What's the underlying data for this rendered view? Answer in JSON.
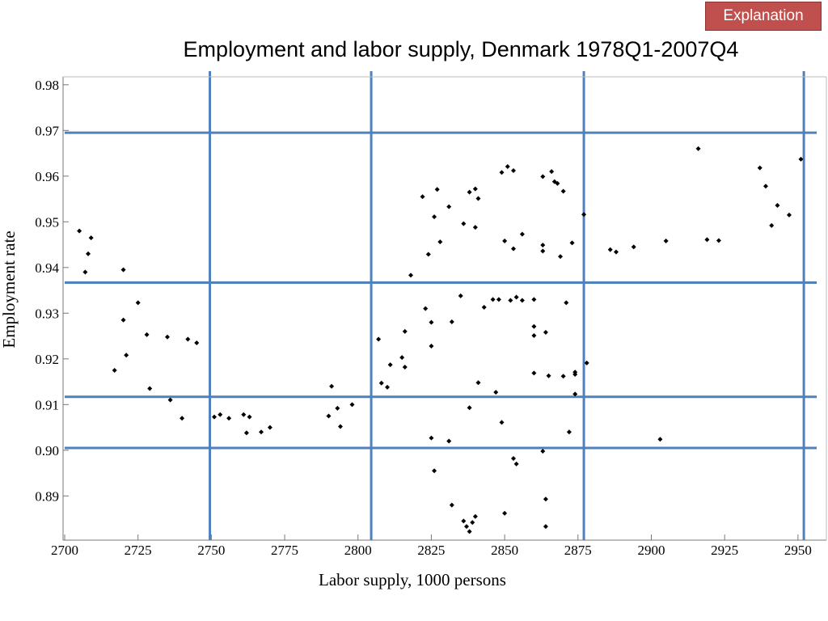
{
  "button": {
    "label": "Explanation",
    "color": "#c0504d"
  },
  "chart_data": {
    "type": "scatter",
    "title": "Employment and labor supply, Denmark 1978Q1-2007Q4",
    "xlabel": "Labor supply, 1000 persons",
    "ylabel": "Employment rate",
    "xlim": [
      2700,
      2955
    ],
    "ylim": [
      0.8805,
      0.9805
    ],
    "xticks": [
      "2700",
      "2725",
      "2750",
      "2775",
      "2800",
      "2825",
      "2850",
      "2875",
      "2900",
      "2925",
      "2950"
    ],
    "yticks": [
      "0.89",
      "0.90",
      "0.91",
      "0.92",
      "0.93",
      "0.94",
      "0.95",
      "0.96",
      "0.97",
      "0.98"
    ],
    "grid": false,
    "overlay_lines": {
      "color": "#4f81bd",
      "vertical_x": [
        2749.5,
        2804.5,
        2877,
        2952
      ],
      "horizontal_y": [
        0.9005,
        0.9117,
        0.9367,
        0.9695
      ]
    },
    "points": [
      [
        2705,
        0.948
      ],
      [
        2707,
        0.939
      ],
      [
        2708,
        0.943
      ],
      [
        2709,
        0.9465
      ],
      [
        2717,
        0.9175
      ],
      [
        2720,
        0.9285
      ],
      [
        2720,
        0.9395
      ],
      [
        2721,
        0.9208
      ],
      [
        2725,
        0.9323
      ],
      [
        2728,
        0.9253
      ],
      [
        2729,
        0.9135
      ],
      [
        2735,
        0.9248
      ],
      [
        2736,
        0.911
      ],
      [
        2740,
        0.907
      ],
      [
        2742,
        0.9243
      ],
      [
        2745,
        0.9235
      ],
      [
        2751,
        0.9073
      ],
      [
        2753,
        0.9078
      ],
      [
        2756,
        0.907
      ],
      [
        2761,
        0.9078
      ],
      [
        2762,
        0.9038
      ],
      [
        2763,
        0.9073
      ],
      [
        2767,
        0.904
      ],
      [
        2770,
        0.905
      ],
      [
        2790,
        0.9075
      ],
      [
        2791,
        0.914
      ],
      [
        2793,
        0.9092
      ],
      [
        2794,
        0.9052
      ],
      [
        2798,
        0.91
      ],
      [
        2807,
        0.9243
      ],
      [
        2808,
        0.9147
      ],
      [
        2810,
        0.9138
      ],
      [
        2811,
        0.9187
      ],
      [
        2815,
        0.9203
      ],
      [
        2816,
        0.9182
      ],
      [
        2816,
        0.926
      ],
      [
        2818,
        0.9383
      ],
      [
        2822,
        0.9555
      ],
      [
        2823,
        0.931
      ],
      [
        2824,
        0.9429
      ],
      [
        2825,
        0.9228
      ],
      [
        2825,
        0.928
      ],
      [
        2825,
        0.9027
      ],
      [
        2826,
        0.9511
      ],
      [
        2826,
        0.8955
      ],
      [
        2827,
        0.9571
      ],
      [
        2828,
        0.9456
      ],
      [
        2831,
        0.9533
      ],
      [
        2831,
        0.902
      ],
      [
        2832,
        0.9281
      ],
      [
        2832,
        0.888
      ],
      [
        2835,
        0.9338
      ],
      [
        2836,
        0.8845
      ],
      [
        2836,
        0.9496
      ],
      [
        2837,
        0.8833
      ],
      [
        2838,
        0.9093
      ],
      [
        2838,
        0.9565
      ],
      [
        2838,
        0.8822
      ],
      [
        2839,
        0.8842
      ],
      [
        2840,
        0.9488
      ],
      [
        2840,
        0.9572
      ],
      [
        2840,
        0.8855
      ],
      [
        2841,
        0.9148
      ],
      [
        2841,
        0.9551
      ],
      [
        2843,
        0.9313
      ],
      [
        2846,
        0.933
      ],
      [
        2847,
        0.9127
      ],
      [
        2848,
        0.933
      ],
      [
        2849,
        0.9608
      ],
      [
        2849,
        0.9061
      ],
      [
        2850,
        0.8862
      ],
      [
        2850,
        0.9458
      ],
      [
        2851,
        0.9621
      ],
      [
        2852,
        0.9328
      ],
      [
        2853,
        0.9441
      ],
      [
        2853,
        0.8982
      ],
      [
        2853,
        0.9612
      ],
      [
        2854,
        0.9335
      ],
      [
        2854,
        0.897
      ],
      [
        2856,
        0.9473
      ],
      [
        2856,
        0.9328
      ],
      [
        2860,
        0.9271
      ],
      [
        2860,
        0.933
      ],
      [
        2860,
        0.9169
      ],
      [
        2860,
        0.9251
      ],
      [
        2863,
        0.9436
      ],
      [
        2863,
        0.9449
      ],
      [
        2863,
        0.9599
      ],
      [
        2863,
        0.8998
      ],
      [
        2864,
        0.9258
      ],
      [
        2864,
        0.8833
      ],
      [
        2864,
        0.8893
      ],
      [
        2865,
        0.9163
      ],
      [
        2866,
        0.961
      ],
      [
        2867,
        0.9588
      ],
      [
        2868,
        0.9584
      ],
      [
        2869,
        0.9424
      ],
      [
        2870,
        0.9567
      ],
      [
        2870,
        0.9162
      ],
      [
        2871,
        0.9323
      ],
      [
        2872,
        0.904
      ],
      [
        2873,
        0.9454
      ],
      [
        2874,
        0.9123
      ],
      [
        2874,
        0.9166
      ],
      [
        2874,
        0.9171
      ],
      [
        2877,
        0.9516
      ],
      [
        2878,
        0.9191
      ],
      [
        2886,
        0.9439
      ],
      [
        2888,
        0.9434
      ],
      [
        2894,
        0.9445
      ],
      [
        2903,
        0.9024
      ],
      [
        2905,
        0.9458
      ],
      [
        2916,
        0.966
      ],
      [
        2919,
        0.9461
      ],
      [
        2923,
        0.9459
      ],
      [
        2937,
        0.9618
      ],
      [
        2939,
        0.9578
      ],
      [
        2941,
        0.9492
      ],
      [
        2943,
        0.9536
      ],
      [
        2947,
        0.9515
      ],
      [
        2951,
        0.9637
      ]
    ]
  }
}
